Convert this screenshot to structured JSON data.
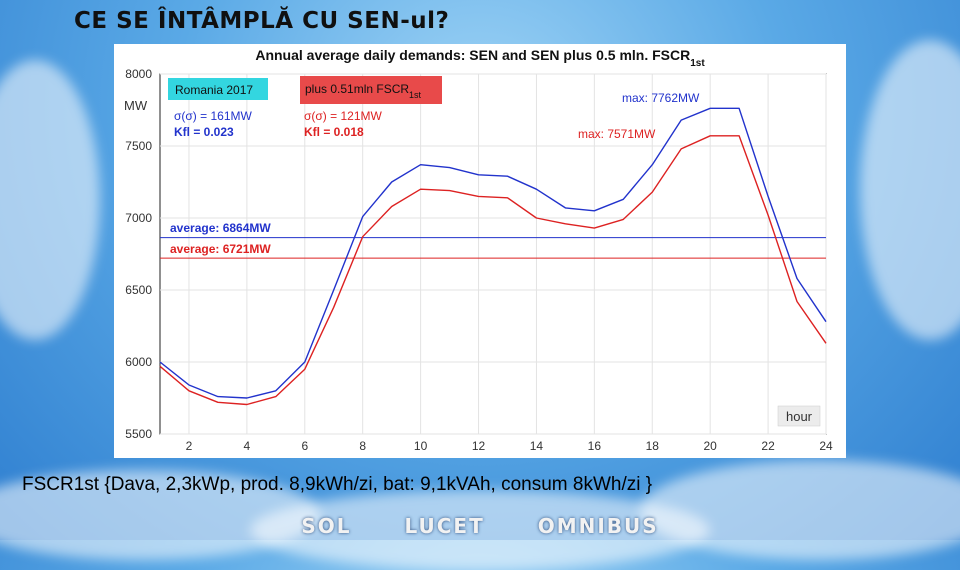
{
  "slide": {
    "title": "CE SE ÎNTÂMPLĂ CU SEN-ul?",
    "caption": "FSCR1st {Dava,  2,3kWp, prod. 8,9kWh/zi, bat: 9,1kVAh, consum 8kWh/zi }",
    "footer": [
      "SOL",
      "LUCET",
      "OMNIBUS"
    ]
  },
  "chart_data": {
    "type": "line",
    "title": "Annual average daily demands: SEN  and  SEN plus 0.5 mln. FSCR",
    "title_subscript": "1st",
    "xlabel": "hour",
    "ylabel": "MW",
    "xlim": [
      1,
      24
    ],
    "ylim": [
      5500,
      8000
    ],
    "xticks": [
      2,
      4,
      6,
      8,
      10,
      12,
      14,
      16,
      18,
      20,
      22,
      24
    ],
    "yticks": [
      5500,
      6000,
      6500,
      7000,
      7500,
      8000
    ],
    "grid": true,
    "x": [
      1,
      2,
      3,
      4,
      5,
      6,
      7,
      8,
      9,
      10,
      11,
      12,
      13,
      14,
      15,
      16,
      17,
      18,
      19,
      20,
      21,
      22,
      23,
      24
    ],
    "series": [
      {
        "name": "Romania 2017",
        "color": "#2233cc",
        "values": [
          6000,
          5840,
          5760,
          5750,
          5800,
          6000,
          6500,
          7010,
          7250,
          7370,
          7350,
          7300,
          7290,
          7200,
          7070,
          7050,
          7130,
          7370,
          7680,
          7762,
          7762,
          7150,
          6580,
          6280
        ],
        "legend": "Romania 2017",
        "legend_bg": "#33d6e0",
        "stats": [
          "σ(σ) = 161MW",
          "Kfl = 0.023"
        ],
        "average_label": "average: 6864MW",
        "average": 6864,
        "max_label": "max: 7762MW"
      },
      {
        "name": "plus 0.51mln FSCR1st",
        "color": "#dd2222",
        "values": [
          5970,
          5800,
          5720,
          5705,
          5760,
          5950,
          6380,
          6870,
          7080,
          7200,
          7190,
          7150,
          7140,
          7000,
          6960,
          6930,
          6990,
          7180,
          7480,
          7571,
          7571,
          7020,
          6420,
          6130
        ],
        "legend": "plus 0.51mln FSCR",
        "legend_subscript": "1st",
        "legend_bg": "#e84a4a",
        "stats": [
          "σ(σ) = 121MW",
          "Kfl = 0.018"
        ],
        "average_label": "average: 6721MW",
        "average": 6721,
        "max_label": "max: 7571MW"
      }
    ]
  }
}
